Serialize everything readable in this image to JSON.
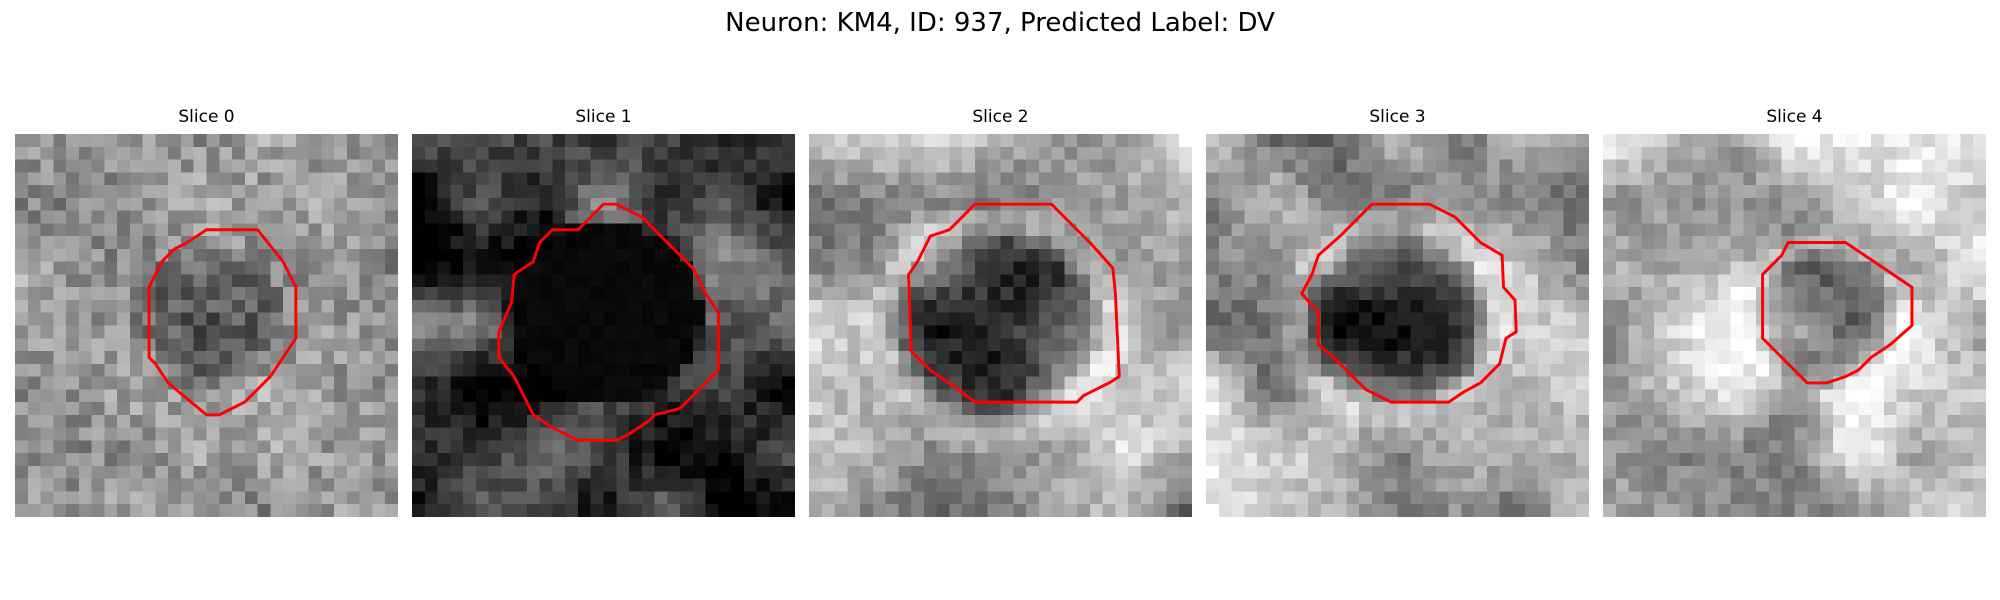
{
  "figure": {
    "title": "Neuron: KM4, ID: 937, Predicted Label: DV"
  },
  "panels": [
    {
      "title": "Slice 0",
      "tone": "mid",
      "blob": "soft"
    },
    {
      "title": "Slice 1",
      "tone": "dark",
      "blob": "black"
    },
    {
      "title": "Slice 2",
      "tone": "light",
      "blob": "dark"
    },
    {
      "title": "Slice 3",
      "tone": "light",
      "blob": "dark"
    },
    {
      "title": "Slice 4",
      "tone": "bright",
      "blob": "soft"
    }
  ],
  "colors": {
    "contour": "#ff0000",
    "background": "#ffffff"
  }
}
